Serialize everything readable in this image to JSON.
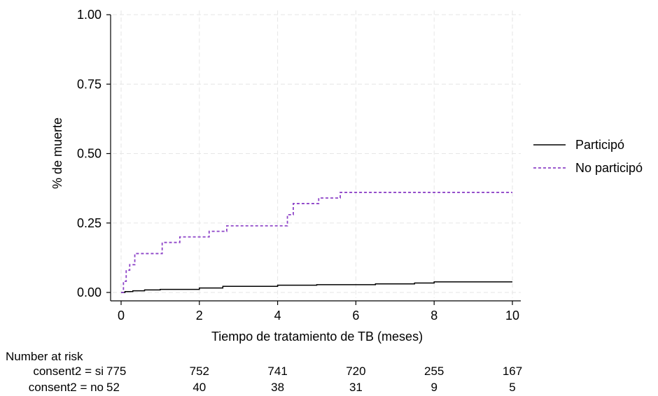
{
  "chart_data": {
    "type": "line",
    "step": true,
    "title": "",
    "xlabel": "Tiempo de tratamiento de TB (meses)",
    "ylabel": "% de muerte",
    "xlim": [
      0,
      10
    ],
    "ylim": [
      0,
      1
    ],
    "x_ticks": [
      0,
      2,
      4,
      6,
      8,
      10
    ],
    "x_tick_labels": [
      "0",
      "2",
      "4",
      "6",
      "8",
      "10"
    ],
    "y_ticks": [
      0,
      0.25,
      0.5,
      0.75,
      1
    ],
    "y_tick_labels": [
      "0.00",
      "0.25",
      "0.50",
      "0.75",
      "1.00"
    ],
    "grid": true,
    "legend_position": "right",
    "series": [
      {
        "name": "Participó",
        "color": "#000000",
        "style": "solid",
        "x": [
          0,
          0.1,
          0.3,
          0.6,
          1.0,
          2.0,
          2.6,
          4.0,
          5.0,
          6.5,
          7.5,
          8.0,
          10.0
        ],
        "y": [
          0.0,
          0.003,
          0.006,
          0.009,
          0.011,
          0.016,
          0.022,
          0.026,
          0.028,
          0.031,
          0.034,
          0.038,
          0.038
        ]
      },
      {
        "name": "No participó",
        "color": "#8e44c8",
        "style": "dashed",
        "x": [
          0,
          0.06,
          0.13,
          0.22,
          0.35,
          1.05,
          1.5,
          2.25,
          2.7,
          4.25,
          4.4,
          5.05,
          5.6,
          10.0
        ],
        "y": [
          0.0,
          0.04,
          0.08,
          0.1,
          0.14,
          0.18,
          0.2,
          0.22,
          0.24,
          0.28,
          0.32,
          0.34,
          0.36,
          0.36
        ]
      }
    ],
    "risk_table": {
      "title": "Number at risk",
      "times": [
        0,
        2,
        4,
        6,
        8,
        10
      ],
      "rows": [
        {
          "label": "consent2 = si",
          "values": [
            "775",
            "752",
            "741",
            "720",
            "255",
            "167"
          ]
        },
        {
          "label": "consent2 = no",
          "values": [
            "52",
            "40",
            "38",
            "31",
            "9",
            "5"
          ]
        }
      ]
    }
  }
}
